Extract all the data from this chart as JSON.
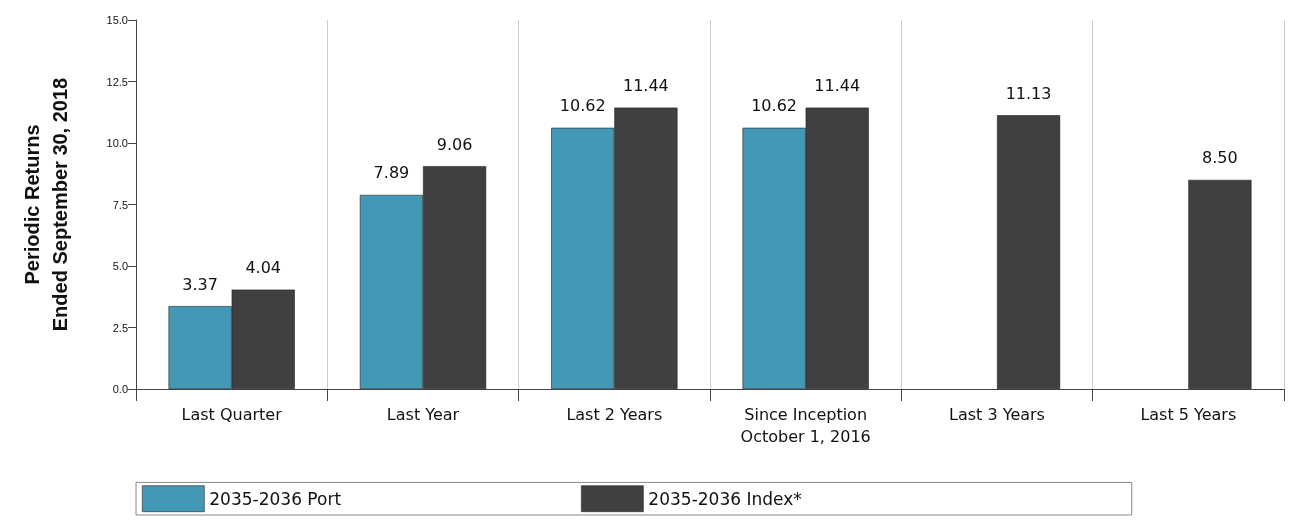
{
  "chart_data": {
    "type": "bar",
    "ylabel": "Periodic Returns\nEnded September 30, 2018",
    "categories": [
      "Last Quarter",
      "Last Year",
      "Last 2 Years",
      "Since Inception\nOctober 1, 2016",
      "Last 3 Years",
      "Last 5 Years"
    ],
    "series": [
      {
        "name": "2035-2036 Port",
        "color": "#4398b5",
        "values": [
          3.37,
          7.89,
          10.62,
          10.62,
          null,
          null
        ],
        "value_labels": [
          "3.37",
          "7.89",
          "10.62",
          "10.62",
          null,
          null
        ]
      },
      {
        "name": "2035-2036 Index*",
        "color": "#404042",
        "values": [
          4.04,
          9.06,
          11.44,
          11.44,
          11.13,
          8.5
        ],
        "value_labels": [
          "4.04",
          "9.06",
          "11.44",
          "11.44",
          "11.13",
          "8.50"
        ]
      }
    ],
    "ylim": [
      0,
      15
    ],
    "yticks": [
      {
        "value": 0,
        "label": "0.0"
      },
      {
        "value": 2.5,
        "label": "2.5"
      },
      {
        "value": 5,
        "label": "5.0"
      },
      {
        "value": 7.5,
        "label": "7.5"
      },
      {
        "value": 10,
        "label": "10.0"
      },
      {
        "value": 12.5,
        "label": "12.5"
      },
      {
        "value": 15,
        "label": "15.0"
      }
    ],
    "grid": "x",
    "legend": "bottom"
  }
}
